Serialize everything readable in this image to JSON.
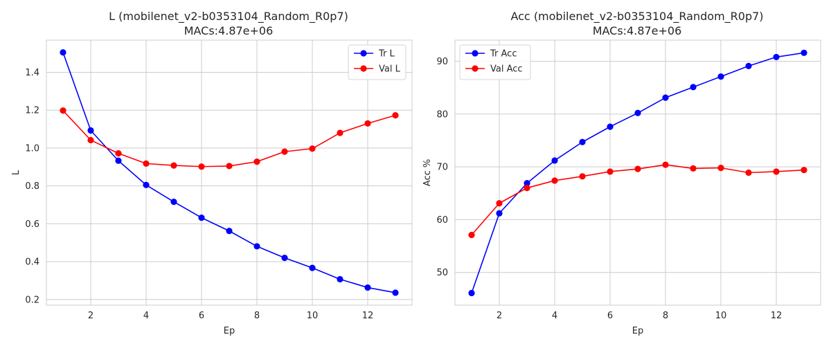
{
  "chart_data": [
    {
      "type": "line",
      "title": "L (mobilenet_v2-b0353104_Random_R0p7)",
      "subtitle": "MACs:4.87e+06",
      "xlabel": "Ep",
      "ylabel": "L",
      "x": [
        1,
        2,
        3,
        4,
        5,
        6,
        7,
        8,
        9,
        10,
        11,
        12,
        13
      ],
      "xlim": [
        0.4,
        13.6
      ],
      "ylim": [
        0.17,
        1.57
      ],
      "xticks": [
        2,
        4,
        6,
        8,
        10,
        12
      ],
      "yticks": [
        0.2,
        0.4,
        0.6,
        0.8,
        1.0,
        1.2,
        1.4
      ],
      "ytick_labels": [
        "0.2",
        "0.4",
        "0.6",
        "0.8",
        "1.0",
        "1.2",
        "1.4"
      ],
      "grid": true,
      "legend_position": "top-right",
      "series": [
        {
          "name": "Tr L",
          "color": "#0000ff",
          "values": [
            1.505,
            1.093,
            0.933,
            0.805,
            0.716,
            0.632,
            0.562,
            0.481,
            0.42,
            0.367,
            0.307,
            0.263,
            0.236
          ]
        },
        {
          "name": "Val L",
          "color": "#ff0000",
          "values": [
            1.198,
            1.042,
            0.972,
            0.918,
            0.908,
            0.902,
            0.905,
            0.928,
            0.981,
            0.997,
            1.08,
            1.13,
            1.173
          ]
        }
      ]
    },
    {
      "type": "line",
      "title": "Acc (mobilenet_v2-b0353104_Random_R0p7)",
      "subtitle": "MACs:4.87e+06",
      "xlabel": "Ep",
      "ylabel": "Acc %",
      "x": [
        1,
        2,
        3,
        4,
        5,
        6,
        7,
        8,
        9,
        10,
        11,
        12,
        13
      ],
      "xlim": [
        0.4,
        13.6
      ],
      "ylim": [
        43.8,
        94.0
      ],
      "xticks": [
        2,
        4,
        6,
        8,
        10,
        12
      ],
      "yticks": [
        50,
        60,
        70,
        80,
        90
      ],
      "ytick_labels": [
        "50",
        "60",
        "70",
        "80",
        "90"
      ],
      "grid": true,
      "legend_position": "top-left",
      "series": [
        {
          "name": "Tr Acc",
          "color": "#0000ff",
          "values": [
            46.1,
            61.2,
            66.9,
            71.2,
            74.7,
            77.6,
            80.2,
            83.1,
            85.1,
            87.1,
            89.1,
            90.8,
            91.6
          ]
        },
        {
          "name": "Val Acc",
          "color": "#ff0000",
          "values": [
            57.1,
            63.1,
            66.0,
            67.4,
            68.2,
            69.1,
            69.6,
            70.4,
            69.7,
            69.8,
            68.9,
            69.1,
            69.4
          ]
        }
      ]
    }
  ]
}
